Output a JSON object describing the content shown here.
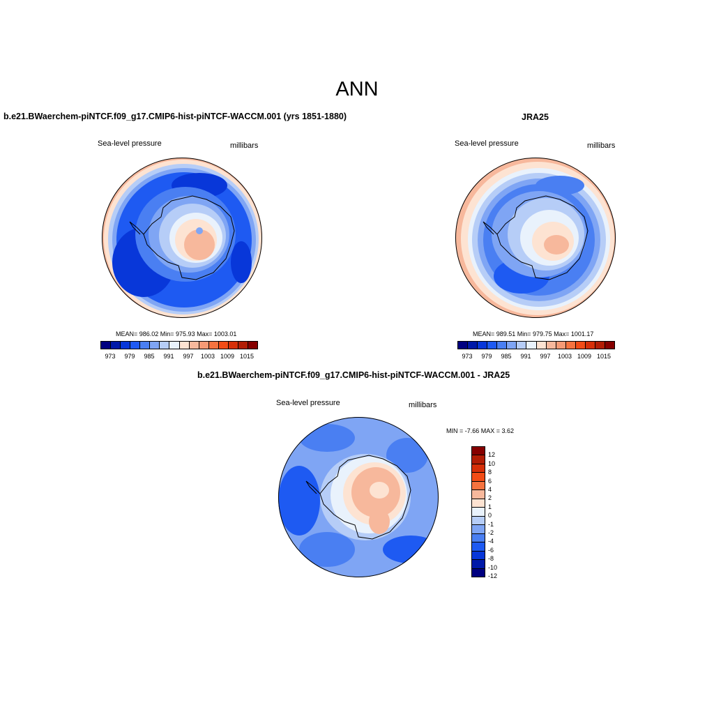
{
  "main_title": "ANN",
  "panels": {
    "model": {
      "title": "b.e21.BWaerchem-piNTCF.f09_g17.CMIP6-hist-piNTCF-WACCM.001 (yrs 1851-1880)",
      "variable": "Sea-level pressure",
      "units": "millibars",
      "stats": "MEAN= 986.02  Min= 975.93  Max= 1003.01"
    },
    "obs": {
      "title": "JRA25",
      "variable": "Sea-level pressure",
      "units": "millibars",
      "stats": "MEAN= 989.51  Min= 979.75  Max= 1001.17"
    },
    "diff": {
      "title": "b.e21.BWaerchem-piNTCF.f09_g17.CMIP6-hist-piNTCF-WACCM.001 - JRA25",
      "variable": "Sea-level pressure",
      "units": "millibars",
      "stats": "MIN =  -7.66 MAX =   3.62"
    }
  },
  "colorbar_levels": [
    "973",
    "979",
    "985",
    "991",
    "997",
    "1003",
    "1009",
    "1015"
  ],
  "diff_colorbar_levels": [
    "12",
    "10",
    "8",
    "6",
    "4",
    "2",
    "1",
    "0",
    "-1",
    "-2",
    "-4",
    "-6",
    "-8",
    "-10",
    "-12"
  ],
  "colors": {
    "abs_scale": [
      "#000080",
      "#0019a8",
      "#0837d9",
      "#1e5af2",
      "#4a7ff2",
      "#7fa5f4",
      "#b6cdf7",
      "#e9f2fc",
      "#fde3d2",
      "#f7b89c",
      "#f59a75",
      "#f6733f",
      "#f24c16",
      "#d62f08",
      "#b21d05",
      "#860000"
    ],
    "diff_scale": [
      "#860000",
      "#b21d05",
      "#d62f08",
      "#f24c16",
      "#f6733f",
      "#f7b89c",
      "#fde3d2",
      "#e9f2fc",
      "#b6cdf7",
      "#7fa5f4",
      "#4a7ff2",
      "#1e5af2",
      "#0837d9",
      "#0019a8",
      "#000080"
    ]
  }
}
